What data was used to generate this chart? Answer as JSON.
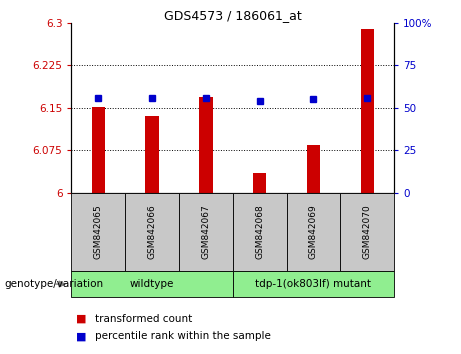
{
  "title": "GDS4573 / 186061_at",
  "samples": [
    "GSM842065",
    "GSM842066",
    "GSM842067",
    "GSM842068",
    "GSM842069",
    "GSM842070"
  ],
  "red_values": [
    6.152,
    6.135,
    6.17,
    6.036,
    6.085,
    6.29
  ],
  "blue_values": [
    6.168,
    6.168,
    6.168,
    6.163,
    6.165,
    6.168
  ],
  "ylim_left": [
    6.0,
    6.3
  ],
  "ylim_right": [
    0,
    100
  ],
  "yticks_left": [
    6.0,
    6.075,
    6.15,
    6.225,
    6.3
  ],
  "yticks_right": [
    0,
    25,
    50,
    75,
    100
  ],
  "ytick_labels_left": [
    "6",
    "6.075",
    "6.15",
    "6.225",
    "6.3"
  ],
  "ytick_labels_right": [
    "0",
    "25",
    "50",
    "75",
    "100%"
  ],
  "group1_label": "wildtype",
  "group1_color": "#90EE90",
  "group2_label": "tdp-1(ok803lf) mutant",
  "group2_color": "#90EE90",
  "bar_color": "#CC0000",
  "dot_color": "#0000CC",
  "sample_box_color": "#C8C8C8",
  "legend_red": "transformed count",
  "legend_blue": "percentile rank within the sample",
  "genotype_label": "genotype/variation",
  "bar_width": 0.25,
  "dot_size": 5,
  "title_fontsize": 9,
  "tick_fontsize": 7.5,
  "label_fontsize": 7.5,
  "sample_fontsize": 6.5
}
